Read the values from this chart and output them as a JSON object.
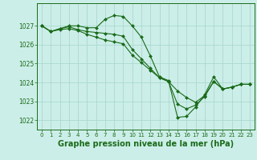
{
  "background_color": "#cceee8",
  "grid_color": "#aad8d0",
  "line_color": "#1a6b1a",
  "marker_color": "#1a6b1a",
  "xlabel": "Graphe pression niveau de la mer (hPa)",
  "xlabel_fontsize": 7.0,
  "ylim": [
    1021.5,
    1028.2
  ],
  "xlim": [
    -0.5,
    23.5
  ],
  "yticks": [
    1022,
    1023,
    1024,
    1025,
    1026,
    1027
  ],
  "ytick_labels": [
    "1022",
    "1023",
    "1024",
    "1025",
    "1026",
    "1027"
  ],
  "xticks": [
    0,
    1,
    2,
    3,
    4,
    5,
    6,
    7,
    8,
    9,
    10,
    11,
    12,
    13,
    14,
    15,
    16,
    17,
    18,
    19,
    20,
    21,
    22,
    23
  ],
  "series": [
    {
      "x": [
        0,
        1,
        2,
        3,
        4,
        5,
        6,
        7,
        8,
        9,
        10,
        11,
        12,
        13,
        14,
        15,
        16,
        17,
        18,
        19,
        20,
        21,
        22,
        23
      ],
      "y": [
        1027.0,
        1026.7,
        1026.85,
        1027.0,
        1027.0,
        1026.9,
        1026.9,
        1027.35,
        1027.55,
        1027.5,
        1027.0,
        1026.4,
        1025.4,
        1024.3,
        1024.1,
        1022.15,
        1022.2,
        1022.7,
        1023.35,
        1024.3,
        1023.65,
        1023.75,
        1023.9,
        1023.9
      ]
    },
    {
      "x": [
        0,
        1,
        2,
        3,
        4,
        5,
        6,
        7,
        8,
        9,
        10,
        11,
        12,
        13,
        14,
        15,
        16,
        17,
        18,
        19,
        20,
        21,
        22,
        23
      ],
      "y": [
        1027.0,
        1026.7,
        1026.85,
        1026.95,
        1026.8,
        1026.7,
        1026.65,
        1026.6,
        1026.55,
        1026.45,
        1025.75,
        1025.25,
        1024.75,
        1024.25,
        1024.05,
        1022.85,
        1022.6,
        1022.8,
        1023.25,
        1024.05,
        1023.65,
        1023.75,
        1023.9,
        1023.9
      ]
    },
    {
      "x": [
        0,
        1,
        2,
        3,
        4,
        5,
        6,
        7,
        8,
        9,
        10,
        11,
        12,
        13,
        14,
        15,
        16,
        17,
        18,
        19,
        20,
        21,
        22,
        23
      ],
      "y": [
        1027.0,
        1026.7,
        1026.8,
        1026.85,
        1026.75,
        1026.55,
        1026.4,
        1026.25,
        1026.15,
        1026.05,
        1025.45,
        1025.05,
        1024.65,
        1024.25,
        1024.05,
        1023.55,
        1023.2,
        1022.95,
        1023.3,
        1024.05,
        1023.65,
        1023.75,
        1023.9,
        1023.9
      ]
    }
  ]
}
